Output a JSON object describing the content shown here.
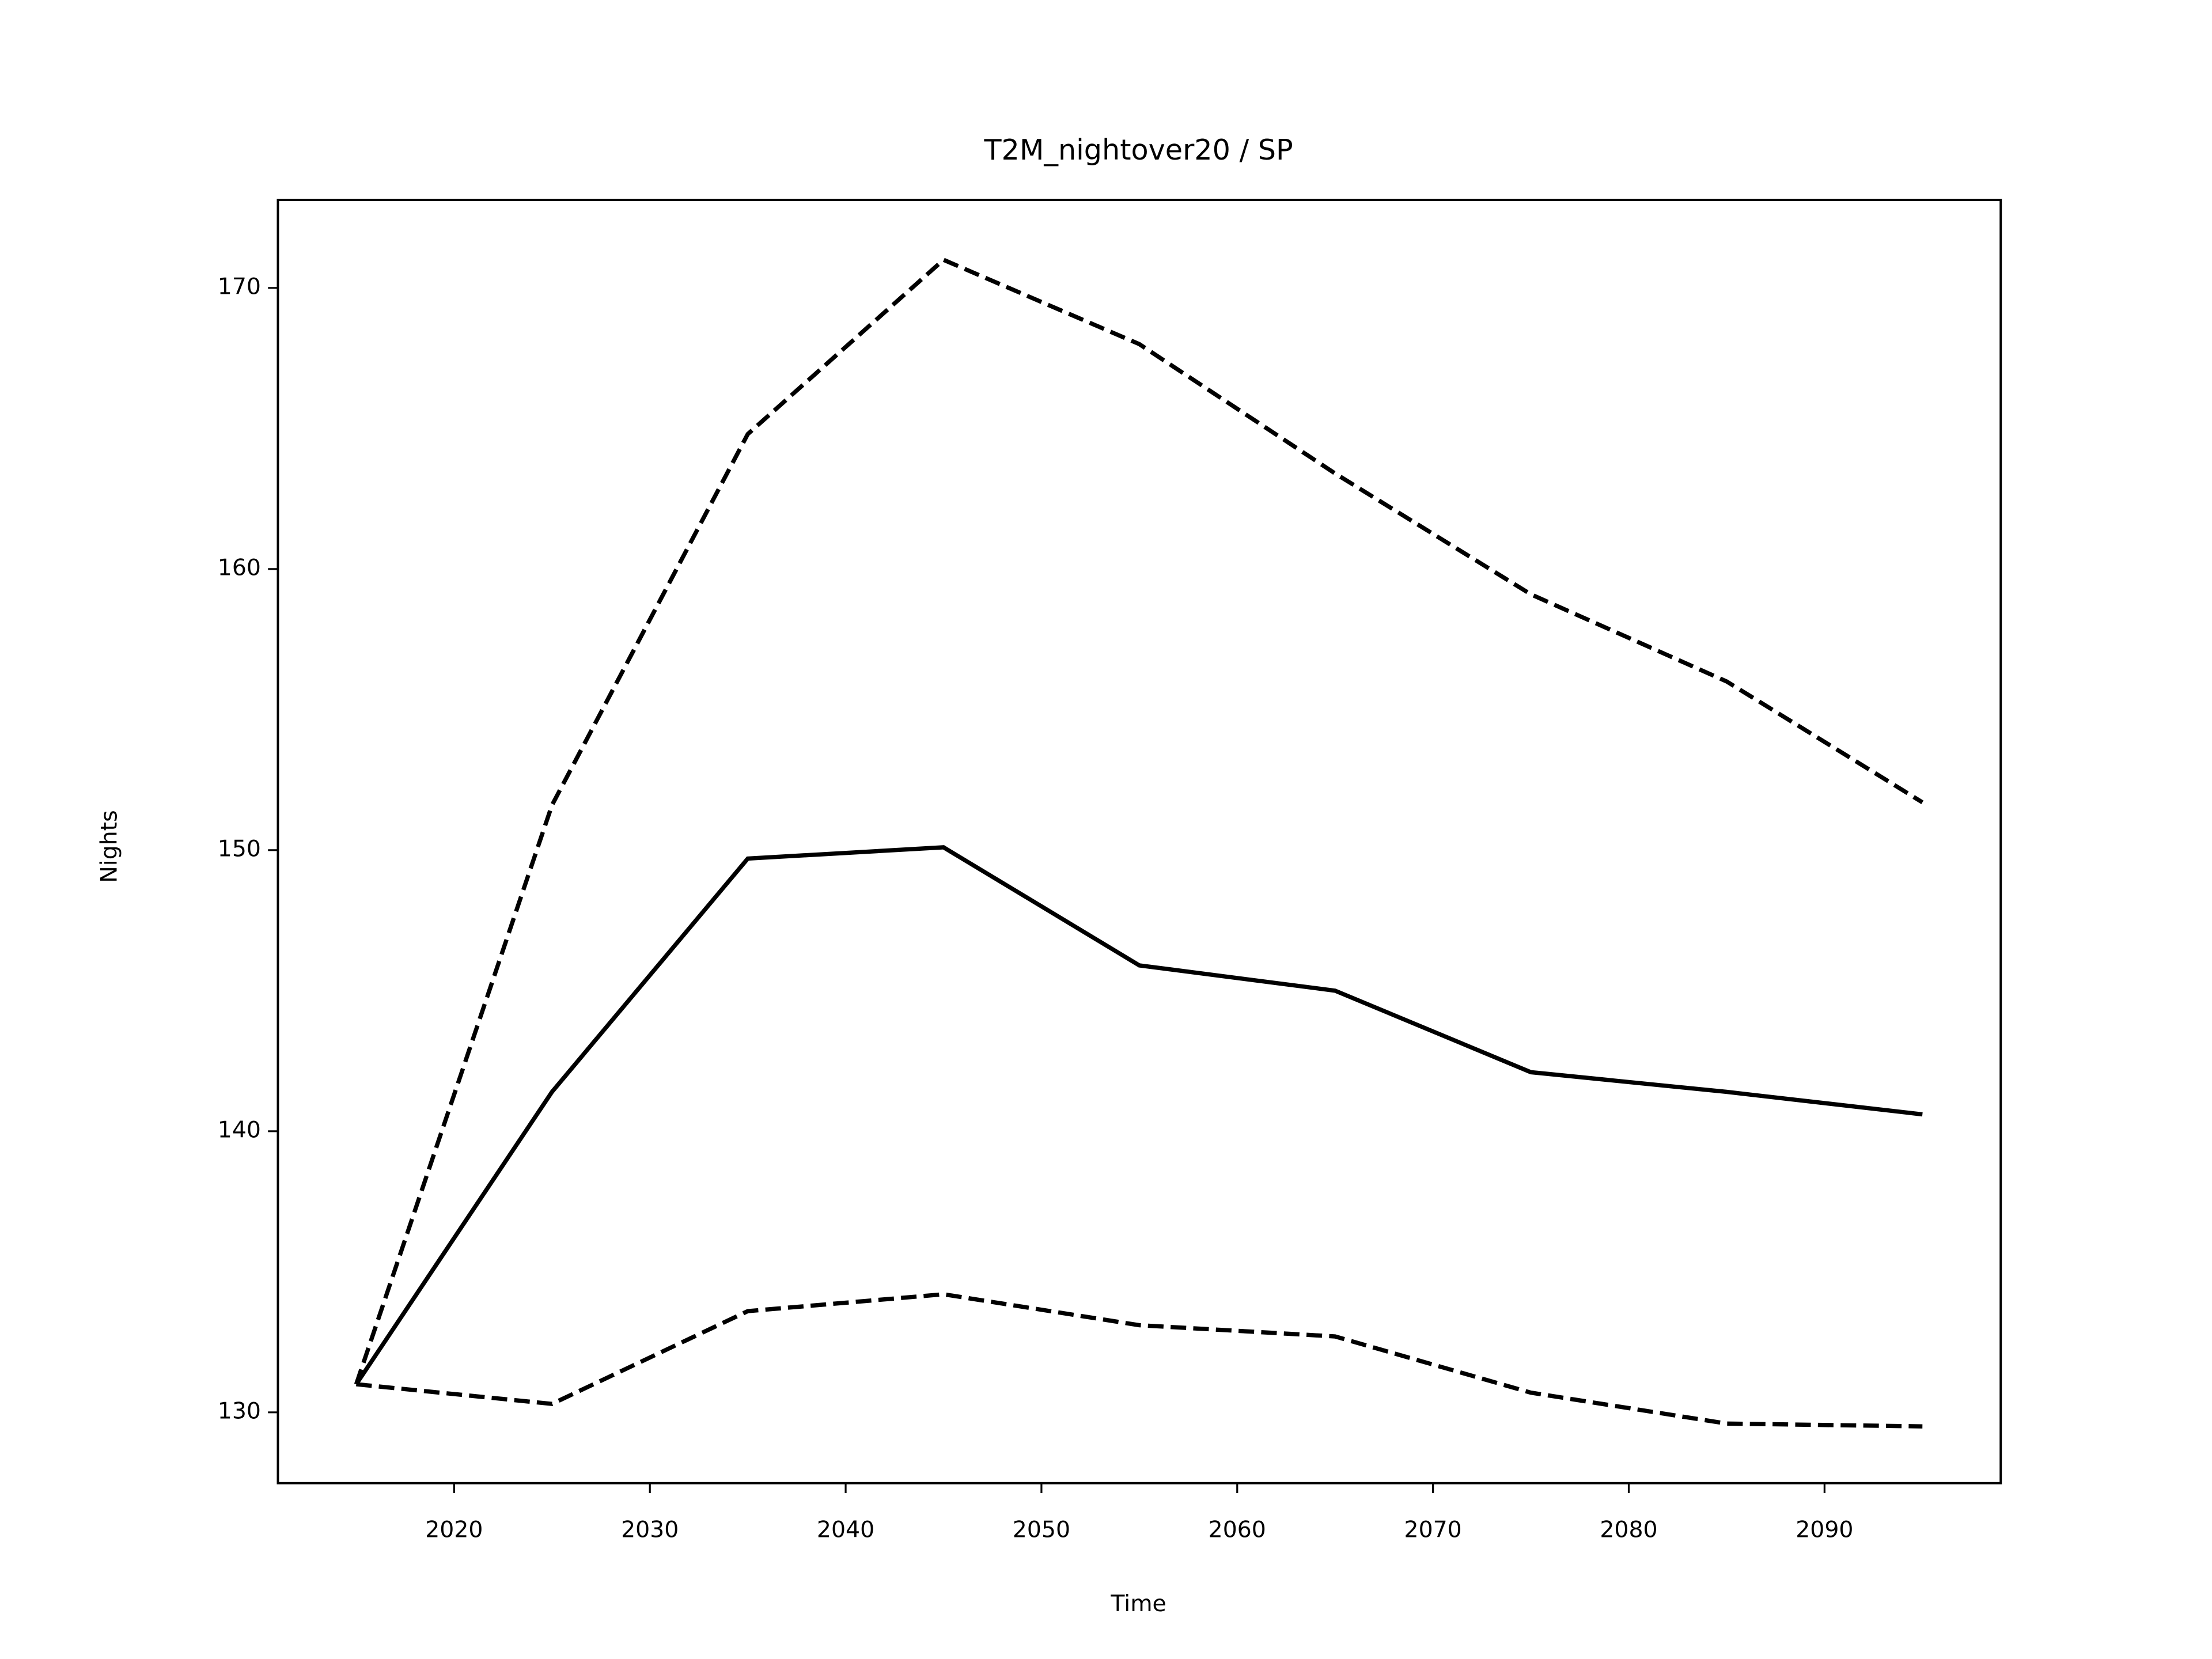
{
  "chart_data": {
    "type": "line",
    "title": "T2M_nightover20 / SP",
    "xlabel": "Time",
    "ylabel": "Nights",
    "x": [
      2015,
      2025,
      2035,
      2045,
      2055,
      2065,
      2075,
      2085,
      2095
    ],
    "series": [
      {
        "color": "#000000",
        "style": "solid",
        "values": [
          131.0,
          141.4,
          149.7,
          150.1,
          145.9,
          145.0,
          142.1,
          141.4,
          140.6
        ]
      },
      {
        "color": "#000000",
        "style": "dashed",
        "values": [
          131.0,
          151.6,
          164.8,
          171.0,
          168.0,
          163.4,
          159.1,
          156.0,
          151.7
        ]
      },
      {
        "color": "#000000",
        "style": "dashed",
        "values": [
          131.0,
          130.3,
          133.6,
          134.2,
          133.1,
          132.7,
          130.7,
          129.6,
          129.5
        ]
      }
    ],
    "xlim": [
      2011,
      2099
    ],
    "xticks": [
      2020,
      2030,
      2040,
      2050,
      2060,
      2070,
      2080,
      2090
    ],
    "ylim": [
      127.48,
      173.13
    ],
    "yticks": [
      130,
      140,
      150,
      160,
      170
    ],
    "grid": false
  }
}
